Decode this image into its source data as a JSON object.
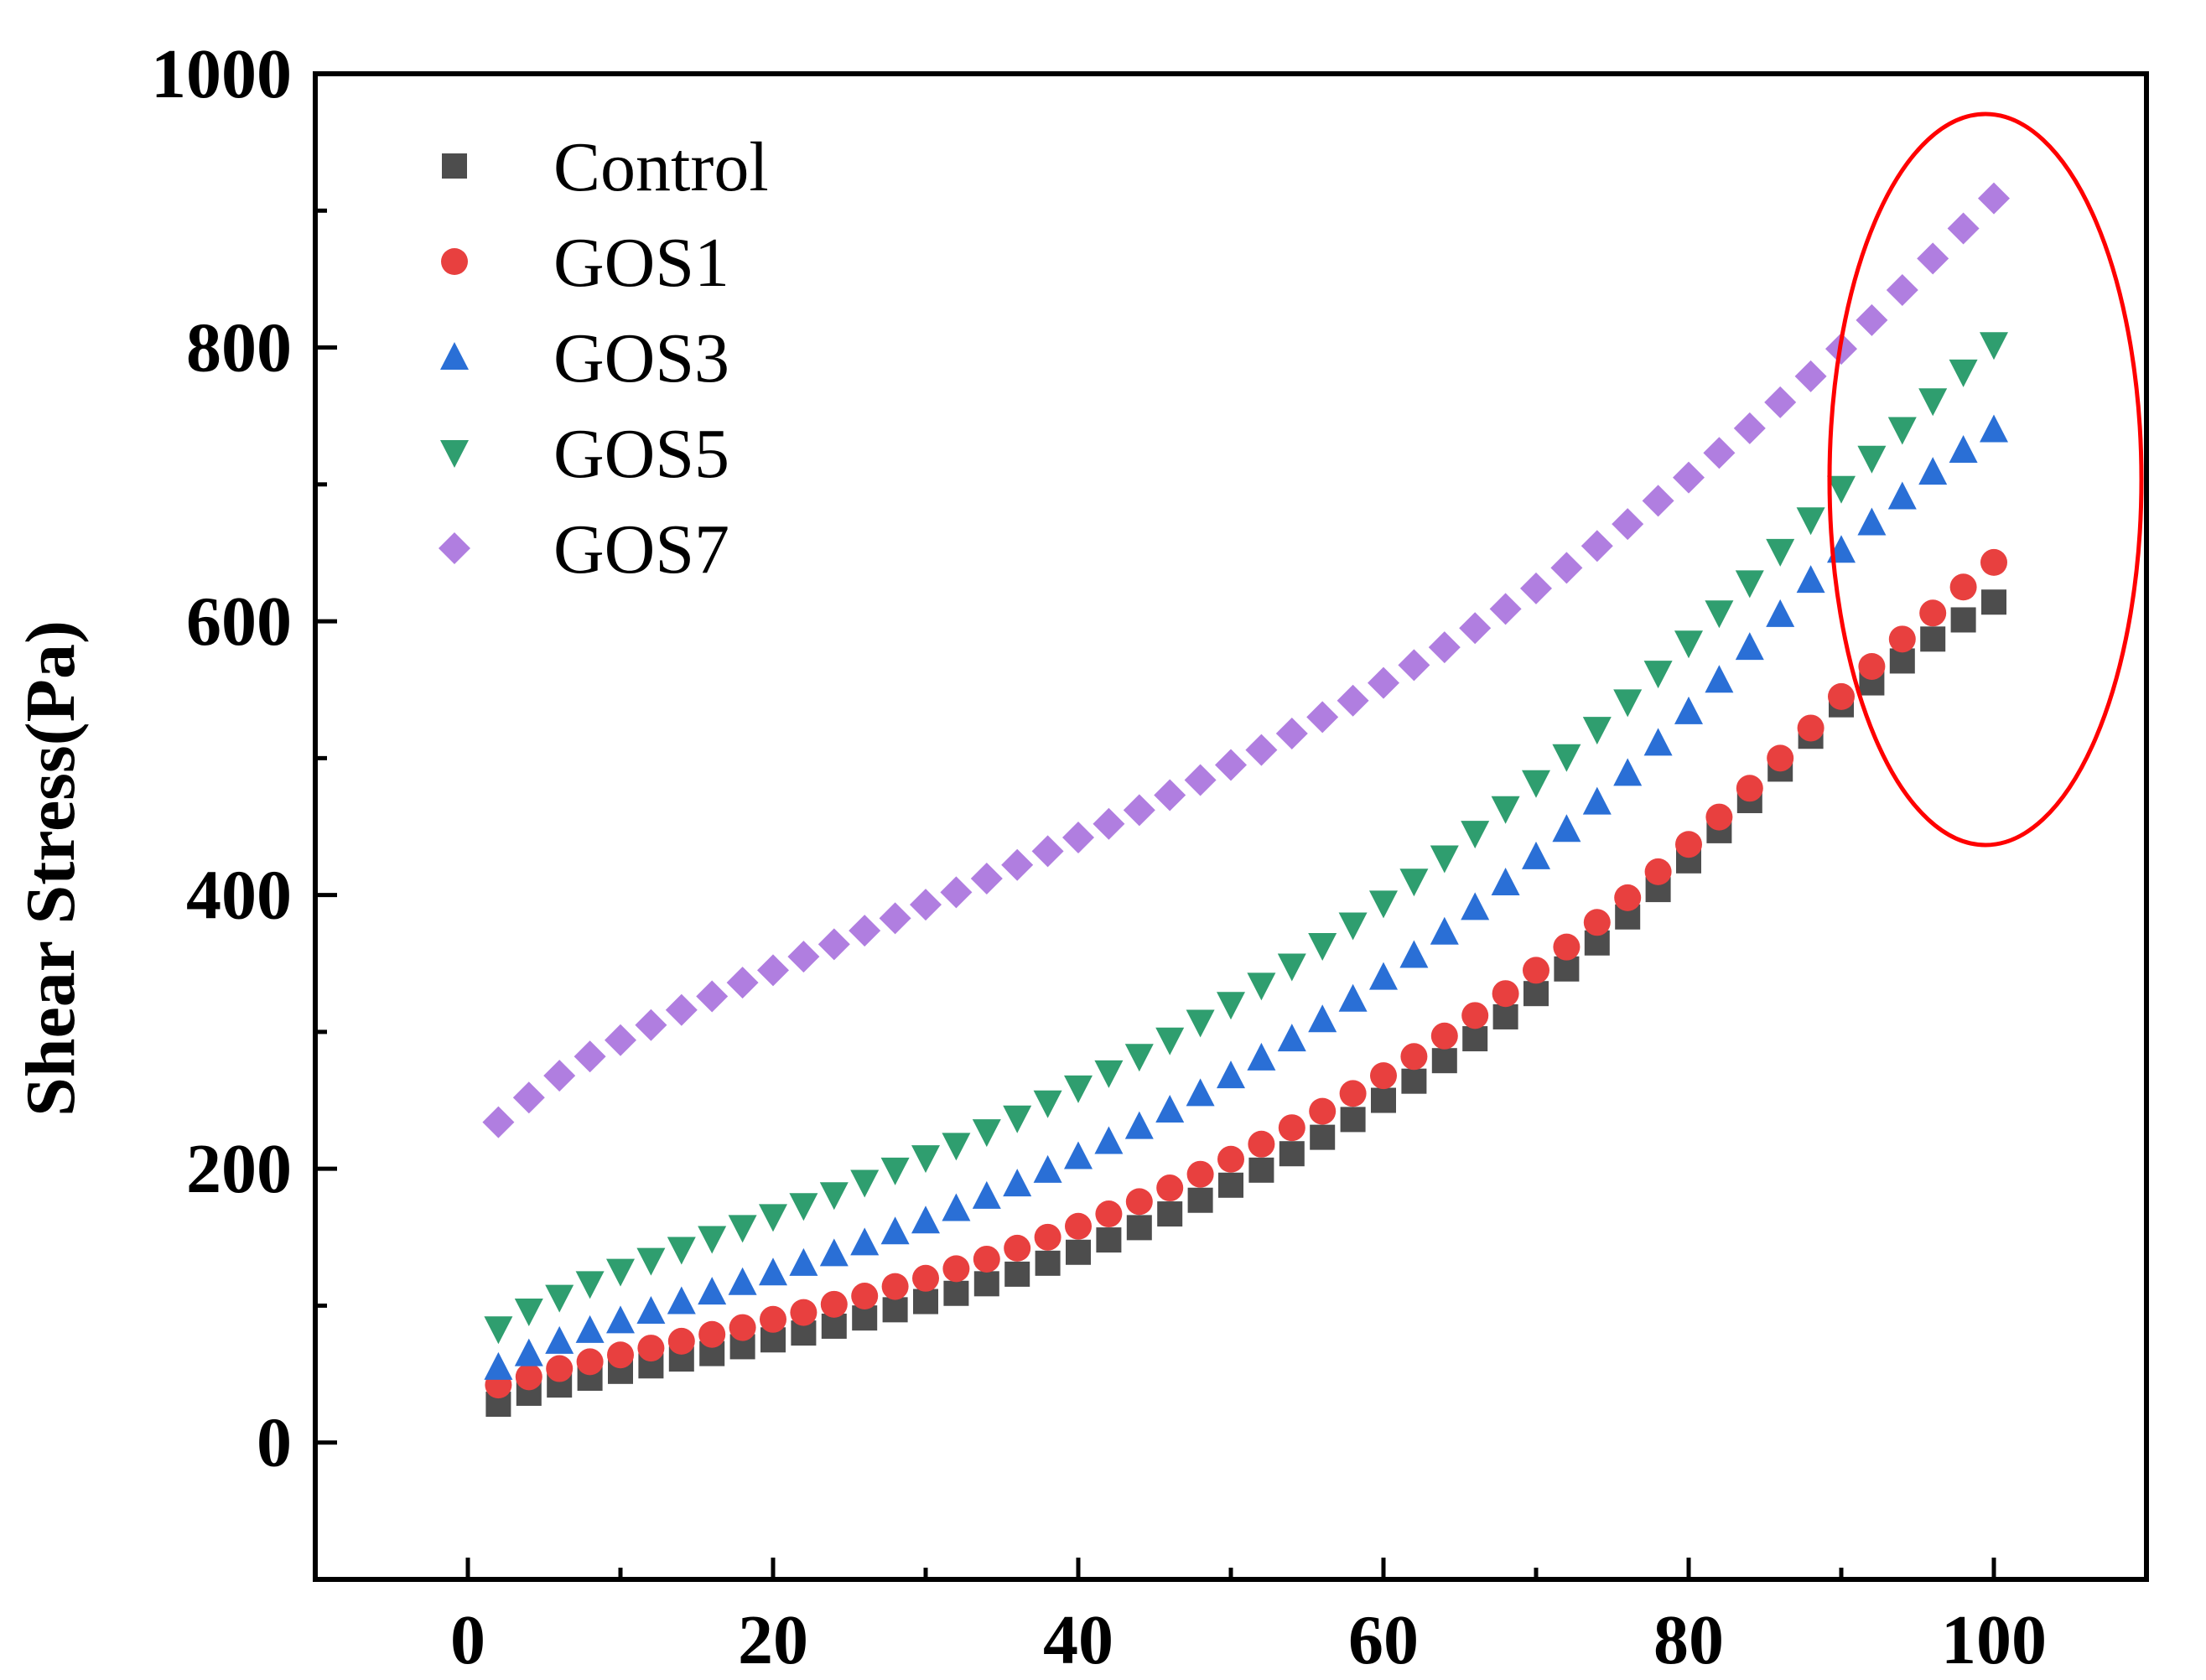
{
  "chart_data": {
    "type": "scatter",
    "title": "",
    "xlabel": "",
    "ylabel": "Shear Stress(Pa)",
    "xlim": [
      -10,
      110
    ],
    "ylim": [
      -100,
      1000
    ],
    "xticks": [
      0,
      20,
      40,
      60,
      80,
      100
    ],
    "xtick_labels": [
      "0",
      "20",
      "40",
      "60",
      "80",
      "100"
    ],
    "yticks": [
      0,
      200,
      400,
      600,
      800,
      1000
    ],
    "ytick_labels": [
      "0",
      "200",
      "400",
      "600",
      "800",
      "1000"
    ],
    "grid": false,
    "legend_position": "top-left",
    "x": [
      2,
      4,
      6,
      8,
      10,
      12,
      14,
      16,
      18,
      20,
      22,
      24,
      26,
      28,
      30,
      32,
      34,
      36,
      38,
      40,
      42,
      44,
      46,
      48,
      50,
      52,
      54,
      56,
      58,
      60,
      62,
      64,
      66,
      68,
      70,
      72,
      74,
      76,
      78,
      80,
      82,
      84,
      86,
      88,
      90,
      92,
      94,
      96,
      98,
      100
    ],
    "series": [
      {
        "name": "Control",
        "marker": "square",
        "color": "#4d4d4d",
        "values": [
          28,
          36,
          42,
          47,
          52,
          56,
          61,
          65,
          70,
          75,
          80,
          85,
          91,
          97,
          103,
          109,
          116,
          123,
          131,
          139,
          148,
          157,
          167,
          177,
          188,
          199,
          211,
          223,
          236,
          250,
          264,
          279,
          295,
          311,
          328,
          346,
          365,
          384,
          404,
          425,
          447,
          469,
          492,
          516,
          539,
          555,
          571,
          587,
          601,
          614
        ]
      },
      {
        "name": "GOS1",
        "marker": "circle",
        "color": "#e8403f",
        "values": [
          42,
          48,
          54,
          59,
          64,
          69,
          74,
          79,
          84,
          90,
          95,
          101,
          107,
          114,
          120,
          127,
          134,
          142,
          150,
          158,
          167,
          176,
          186,
          196,
          207,
          218,
          230,
          242,
          255,
          268,
          282,
          297,
          312,
          328,
          345,
          362,
          380,
          398,
          417,
          437,
          457,
          478,
          500,
          522,
          545,
          567,
          587,
          606,
          625,
          643
        ]
      },
      {
        "name": "GOS3",
        "marker": "triangle-up",
        "color": "#2a6fd6",
        "values": [
          55,
          65,
          74,
          82,
          89,
          96,
          103,
          110,
          117,
          124,
          131,
          138,
          146,
          154,
          162,
          171,
          180,
          189,
          199,
          209,
          220,
          231,
          243,
          255,
          268,
          281,
          295,
          309,
          324,
          340,
          356,
          373,
          391,
          409,
          428,
          448,
          468,
          489,
          511,
          534,
          557,
          581,
          605,
          630,
          652,
          672,
          691,
          709,
          725,
          740
        ]
      },
      {
        "name": "GOS5",
        "marker": "triangle-down",
        "color": "#2f9e6f",
        "values": [
          83,
          96,
          106,
          116,
          125,
          133,
          141,
          149,
          157,
          165,
          173,
          181,
          190,
          199,
          208,
          217,
          227,
          237,
          248,
          259,
          270,
          282,
          294,
          307,
          320,
          334,
          348,
          363,
          378,
          394,
          410,
          427,
          445,
          463,
          482,
          501,
          521,
          541,
          562,
          584,
          606,
          628,
          651,
          674,
          697,
          719,
          740,
          761,
          782,
          802
        ]
      },
      {
        "name": "GOS7",
        "marker": "diamond",
        "color": "#b07ee0",
        "values": [
          234,
          252,
          268,
          282,
          294,
          305,
          316,
          326,
          336,
          345,
          355,
          364,
          374,
          383,
          393,
          402,
          412,
          422,
          432,
          442,
          452,
          462,
          473,
          484,
          495,
          506,
          518,
          530,
          542,
          555,
          568,
          581,
          595,
          609,
          624,
          639,
          655,
          671,
          688,
          705,
          723,
          741,
          760,
          779,
          799,
          820,
          842,
          865,
          887,
          909
        ]
      }
    ]
  }
}
